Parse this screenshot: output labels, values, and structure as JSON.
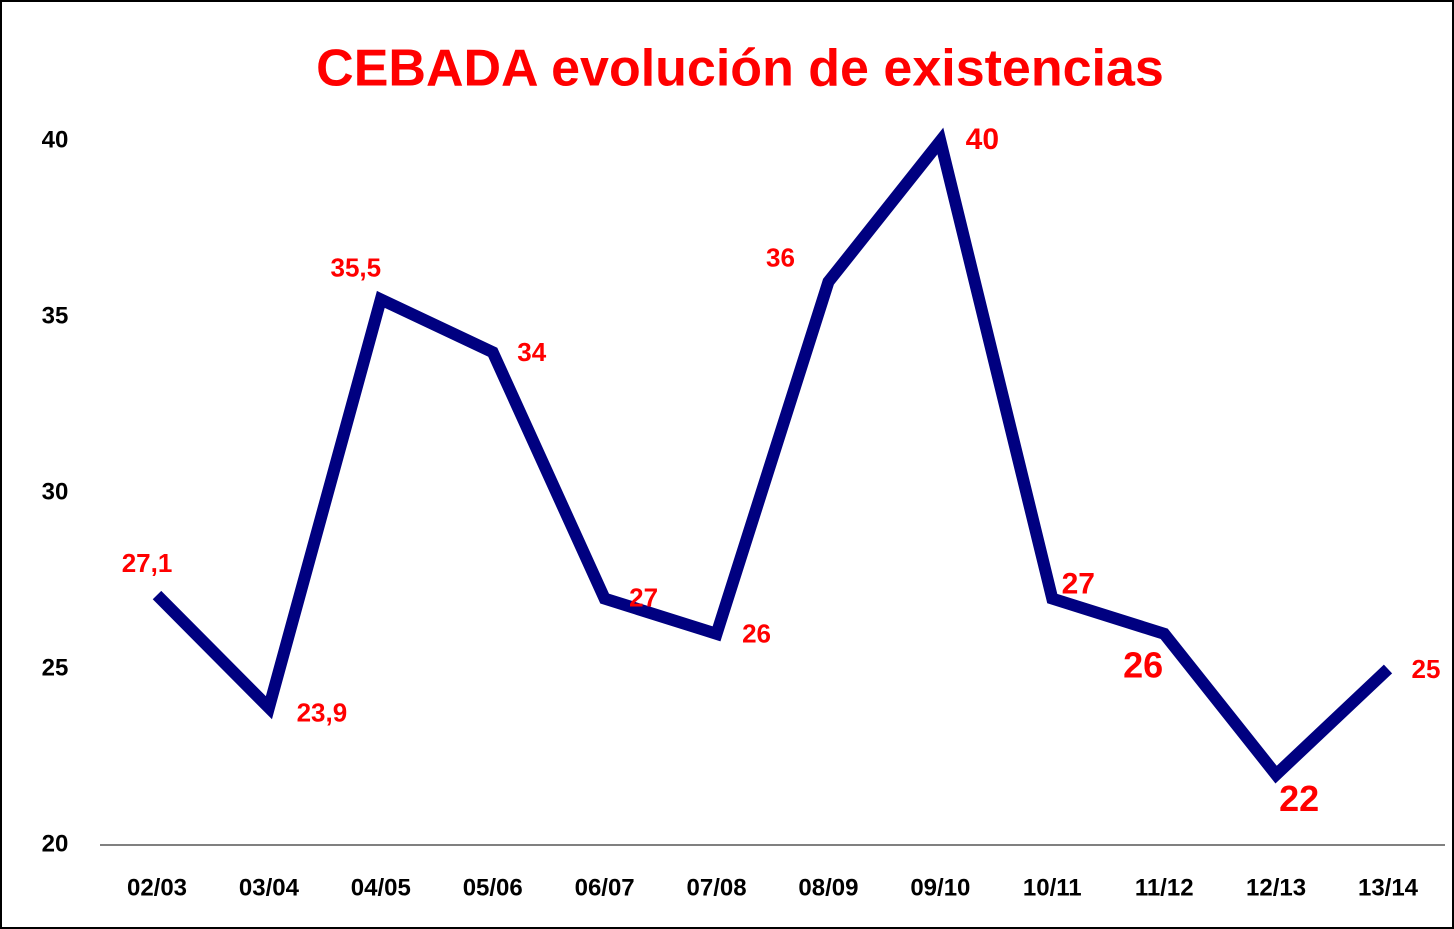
{
  "chart_data": {
    "type": "line",
    "title": "CEBADA evolución de existencias",
    "categories": [
      "02/03",
      "03/04",
      "04/05",
      "05/06",
      "06/07",
      "07/08",
      "08/09",
      "09/10",
      "10/11",
      "11/12",
      "12/13",
      "13/14"
    ],
    "series": [
      {
        "color": "#000080",
        "values": [
          27.1,
          23.9,
          35.5,
          34,
          27,
          26,
          36,
          40,
          27,
          26,
          22,
          25
        ],
        "value_labels": [
          "27,1",
          "23,9",
          "35,5",
          "34",
          "27",
          "26",
          "36",
          "40",
          "27",
          "26",
          "22",
          "25"
        ]
      }
    ],
    "ylim": [
      20,
      40
    ],
    "yticks": [
      20,
      25,
      30,
      35,
      40
    ],
    "grid": false
  }
}
